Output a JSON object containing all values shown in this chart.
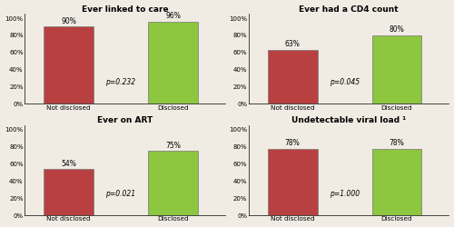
{
  "subplots": [
    {
      "title": "Ever linked to care",
      "values": [
        90,
        96
      ],
      "labels": [
        "Not disclosed",
        "Disclosed"
      ],
      "pvalue": "p=0.232",
      "bar_colors": [
        "#b94040",
        "#8dc63f"
      ],
      "bar_labels": [
        "90%",
        "96%"
      ]
    },
    {
      "title": "Ever had a CD4 count",
      "values": [
        63,
        80
      ],
      "labels": [
        "Not disclosed",
        "Disclosed"
      ],
      "pvalue": "p=0.045",
      "bar_colors": [
        "#b94040",
        "#8dc63f"
      ],
      "bar_labels": [
        "63%",
        "80%"
      ]
    },
    {
      "title": "Ever on ART",
      "values": [
        54,
        75
      ],
      "labels": [
        "Not disclosed",
        "Disclosed"
      ],
      "pvalue": "p=0.021",
      "bar_colors": [
        "#b94040",
        "#8dc63f"
      ],
      "bar_labels": [
        "54%",
        "75%"
      ]
    },
    {
      "title": "Undetectable viral load ¹",
      "values": [
        78,
        78
      ],
      "labels": [
        "Not disclosed",
        "Disclosed"
      ],
      "pvalue": "p=1.000",
      "bar_colors": [
        "#b94040",
        "#8dc63f"
      ],
      "bar_labels": [
        "78%",
        "78%"
      ]
    }
  ],
  "ylim": [
    0,
    105
  ],
  "yticks": [
    0,
    20,
    40,
    60,
    80,
    100
  ],
  "ytick_labels": [
    "0%",
    "20%",
    "40%",
    "60%",
    "80%",
    "100%"
  ],
  "background_color": "#f0ece4",
  "bar_width": 0.62,
  "title_fontsize": 6.5,
  "tick_fontsize": 5.0,
  "label_fontsize": 5.2,
  "pvalue_fontsize": 5.5,
  "bar_label_fontsize": 5.5,
  "x_positions": [
    0.75,
    2.05
  ],
  "xlim": [
    0.2,
    2.7
  ]
}
